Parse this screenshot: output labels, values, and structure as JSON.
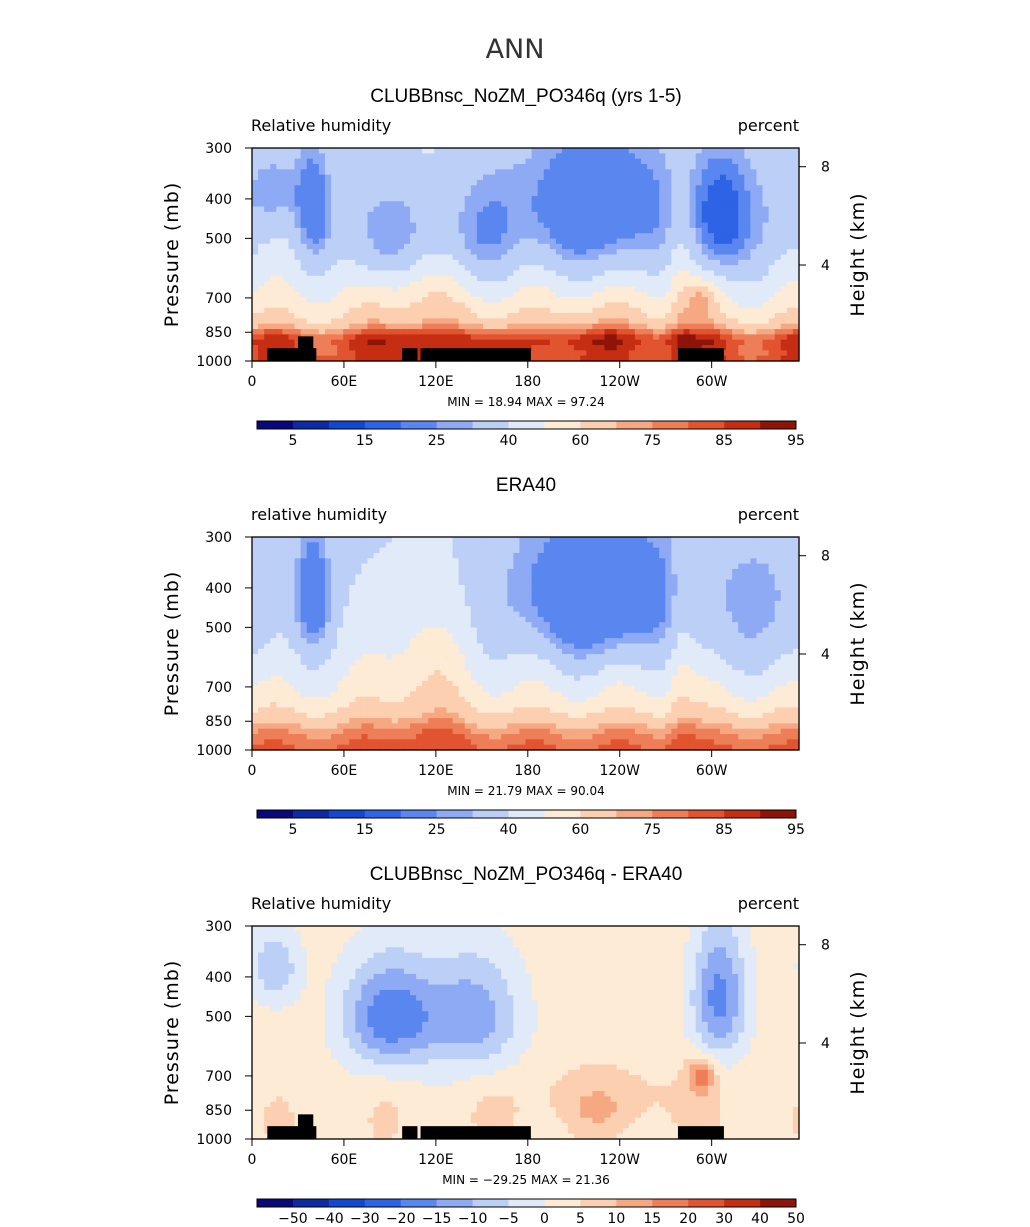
{
  "figure": {
    "season_title": "ANN"
  },
  "colors": {
    "rh": [
      "#08087a",
      "#0c2aa3",
      "#1447d1",
      "#2e63e6",
      "#5a86f0",
      "#8faaf4",
      "#bccff7",
      "#e1eaf8",
      "#fdebd6",
      "#fbcfb0",
      "#f6a883",
      "#ee7e58",
      "#e25330",
      "#c62e13",
      "#8e1308"
    ],
    "diff": [
      "#08087a",
      "#0c2aa3",
      "#1447d1",
      "#2e63e6",
      "#5a86f0",
      "#8faaf4",
      "#bccff7",
      "#e1eaf8",
      "#fdebd6",
      "#fbcfb0",
      "#f6a883",
      "#ee7e58",
      "#e25330",
      "#c62e13",
      "#8e1308"
    ],
    "ground": "#000000"
  },
  "chart_data": [
    {
      "type": "heatmap",
      "title": "CLUBBnsc_NoZM_PO346q (yrs 1-5)",
      "left_label": "Relative humidity",
      "right_label": "percent",
      "ylabel": "Pressure (mb)",
      "y2label": "Height (km)",
      "x_ticks": [
        "0",
        "60E",
        "120E",
        "180",
        "120W",
        "60W"
      ],
      "x_tick_values": [
        0,
        60,
        120,
        180,
        240,
        300
      ],
      "xlim": [
        0,
        357
      ],
      "y_ticks": [
        "300",
        "400",
        "500",
        "700",
        "850",
        "1000"
      ],
      "y_tick_values": [
        300,
        400,
        500,
        700,
        850,
        1000
      ],
      "ylim": [
        300,
        1000
      ],
      "y2_ticks": [
        "8",
        "4"
      ],
      "y2_tick_values": [
        8,
        4
      ],
      "stats_text": "MIN =   18.94   MAX =   97.24",
      "min": 18.94,
      "max": 97.24,
      "colorbar_boundaries": [
        0,
        5,
        10,
        15,
        20,
        25,
        30,
        40,
        50,
        60,
        70,
        75,
        80,
        85,
        90,
        95
      ],
      "colorbar_labels": [
        "5",
        "15",
        "25",
        "40",
        "60",
        "75",
        "85",
        "95"
      ],
      "colorbar_label_values": [
        5,
        15,
        25,
        40,
        60,
        75,
        85,
        95
      ],
      "field": "model",
      "has_topography": true
    },
    {
      "type": "heatmap",
      "title": "ERA40",
      "left_label": "relative humidity",
      "right_label": "percent",
      "ylabel": "Pressure (mb)",
      "y2label": "Height (km)",
      "x_ticks": [
        "0",
        "60E",
        "120E",
        "180",
        "120W",
        "60W"
      ],
      "x_tick_values": [
        0,
        60,
        120,
        180,
        240,
        300
      ],
      "xlim": [
        0,
        357
      ],
      "y_ticks": [
        "300",
        "400",
        "500",
        "700",
        "850",
        "1000"
      ],
      "y_tick_values": [
        300,
        400,
        500,
        700,
        850,
        1000
      ],
      "ylim": [
        300,
        1000
      ],
      "y2_ticks": [
        "8",
        "4"
      ],
      "y2_tick_values": [
        8,
        4
      ],
      "stats_text": "MIN =   21.79   MAX =   90.04",
      "min": 21.79,
      "max": 90.04,
      "colorbar_boundaries": [
        0,
        5,
        10,
        15,
        20,
        25,
        30,
        40,
        50,
        60,
        70,
        75,
        80,
        85,
        90,
        95
      ],
      "colorbar_labels": [
        "5",
        "15",
        "25",
        "40",
        "60",
        "75",
        "85",
        "95"
      ],
      "colorbar_label_values": [
        5,
        15,
        25,
        40,
        60,
        75,
        85,
        95
      ],
      "field": "obs",
      "has_topography": false
    },
    {
      "type": "heatmap",
      "title": "CLUBBnsc_NoZM_PO346q - ERA40",
      "left_label": "Relative humidity",
      "right_label": "percent",
      "ylabel": "Pressure (mb)",
      "y2label": "Height (km)",
      "x_ticks": [
        "0",
        "60E",
        "120E",
        "180",
        "120W",
        "60W"
      ],
      "x_tick_values": [
        0,
        60,
        120,
        180,
        240,
        300
      ],
      "xlim": [
        0,
        357
      ],
      "y_ticks": [
        "300",
        "400",
        "500",
        "700",
        "850",
        "1000"
      ],
      "y_tick_values": [
        300,
        400,
        500,
        700,
        850,
        1000
      ],
      "ylim": [
        300,
        1000
      ],
      "y2_ticks": [
        "8",
        "4"
      ],
      "y2_tick_values": [
        8,
        4
      ],
      "stats_text": "MIN = −29.25   MAX =   21.36",
      "min": -29.25,
      "max": 21.36,
      "colorbar_boundaries": [
        -60,
        -50,
        -40,
        -30,
        -20,
        -15,
        -10,
        -5,
        0,
        5,
        10,
        15,
        20,
        30,
        40,
        50
      ],
      "colorbar_labels": [
        "−50",
        "−40",
        "−30",
        "−20",
        "−15",
        "−10",
        "−5",
        "0",
        "5",
        "10",
        "15",
        "20",
        "30",
        "40",
        "50"
      ],
      "colorbar_label_values": [
        -50,
        -40,
        -30,
        -20,
        -15,
        -10,
        -5,
        0,
        5,
        10,
        15,
        20,
        30,
        40,
        50
      ],
      "field": "diff",
      "has_topography": true
    }
  ]
}
